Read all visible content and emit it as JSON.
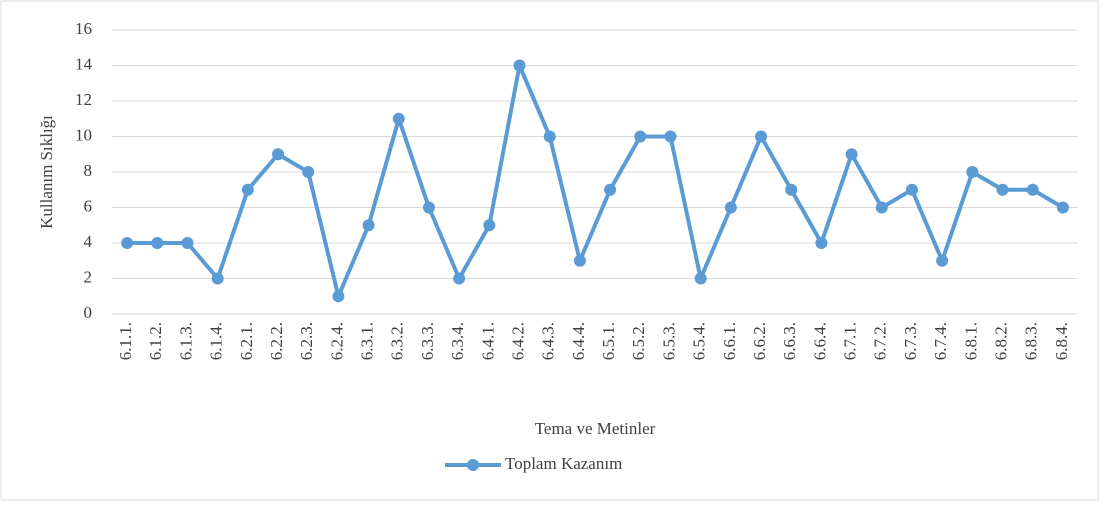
{
  "chart_data": {
    "type": "line",
    "x_label": "Tema ve Metinler",
    "y_label": "Kullanım Sıklığı",
    "categories": [
      "6.1.1.",
      "6.1.2.",
      "6.1.3.",
      "6.1.4.",
      "6.2.1.",
      "6.2.2.",
      "6.2.3.",
      "6.2.4.",
      "6.3.1.",
      "6.3.2.",
      "6.3.3.",
      "6.3.4.",
      "6.4.1.",
      "6.4.2.",
      "6.4.3.",
      "6.4.4.",
      "6.5.1.",
      "6.5.2.",
      "6.5.3.",
      "6.5.4.",
      "6.6.1.",
      "6.6.2.",
      "6.6.3.",
      "6.6.4.",
      "6.7.1.",
      "6.7.2.",
      "6.7.3.",
      "6.7.4.",
      "6.8.1.",
      "6.8.2.",
      "6.8.3.",
      "6.8.4."
    ],
    "series": [
      {
        "name": "Toplam Kazanım",
        "color": "#5b9bd5",
        "values": [
          4,
          4,
          4,
          2,
          7,
          9,
          8,
          1,
          5,
          11,
          6,
          2,
          5,
          14,
          10,
          3,
          7,
          10,
          10,
          2,
          6,
          10,
          7,
          4,
          9,
          6,
          7,
          3,
          8,
          7,
          7,
          6
        ]
      }
    ],
    "ylim": [
      0,
      16
    ],
    "yticks": [
      0,
      2,
      4,
      6,
      8,
      10,
      12,
      14,
      16
    ],
    "grid": true,
    "legend": "bottom"
  }
}
